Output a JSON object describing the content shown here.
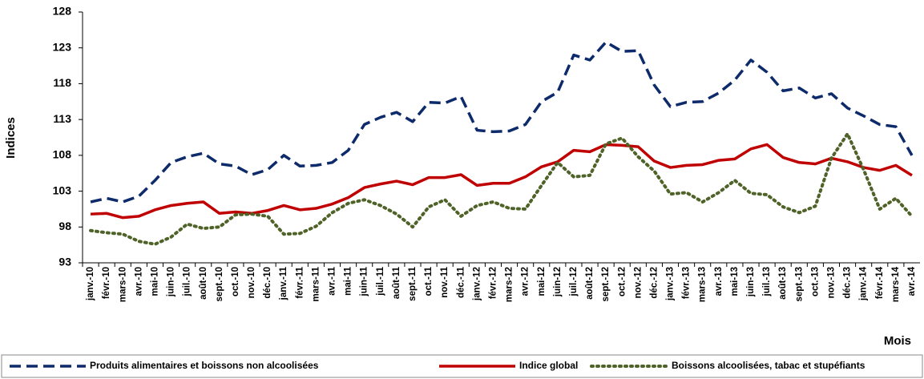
{
  "chart_data": {
    "type": "line",
    "x_label": "Mois",
    "y_label": "Indices",
    "categories": [
      "janv.-10",
      "févr.-10",
      "mars-10",
      "avr.-10",
      "mai-10",
      "juin-10",
      "juil.-10",
      "août-10",
      "sept.-10",
      "oct.-10",
      "nov.-10",
      "déc.-10",
      "janv.-11",
      "févr.-11",
      "mars-11",
      "avr.-11",
      "mai-11",
      "juin-11",
      "juil.-11",
      "août-11",
      "sept.-11",
      "oct.-11",
      "nov.-11",
      "déc.-11",
      "janv.-12",
      "févr.-12",
      "mars-12",
      "avr.-12",
      "mai-12",
      "juin-12",
      "juil.-12",
      "août-12",
      "sept.-12",
      "oct.-12",
      "nov.-12",
      "déc.-12",
      "janv.-13",
      "févr.-13",
      "mars-13",
      "avr.-13",
      "mai-13",
      "juin-13",
      "juil.-13",
      "août-13",
      "sept.-13",
      "oct.-13",
      "nov.-13",
      "déc.-13",
      "janv.-14",
      "févr.-14",
      "mars-14",
      "avr.-14"
    ],
    "series": [
      {
        "name": "Produits alimentaires et boissons non alcoolisées",
        "color": "#0d2a6b",
        "dash": "dashed",
        "values": [
          101.5,
          102,
          101.5,
          102.3,
          104.5,
          107,
          107.8,
          108.3,
          106.8,
          106.5,
          105.3,
          106,
          108,
          106.5,
          106.6,
          107,
          108.7,
          112.3,
          113.3,
          114,
          112.7,
          115.4,
          115.3,
          116.2,
          111.5,
          111.3,
          111.4,
          112.3,
          115.5,
          116.8,
          122,
          121.3,
          123.8,
          122.5,
          122.6,
          117.8,
          114.8,
          115.4,
          115.5,
          116.7,
          118.5,
          121.3,
          119.6,
          117,
          117.4,
          116,
          116.6,
          114.6,
          113.5,
          112.3,
          112,
          108
        ]
      },
      {
        "name": "Indice global",
        "color": "#c00000",
        "dash": "solid",
        "values": [
          99.8,
          99.9,
          99.3,
          99.5,
          100.4,
          101,
          101.3,
          101.5,
          99.9,
          100.1,
          99.9,
          100.3,
          101,
          100.4,
          100.6,
          101.2,
          102.1,
          103.5,
          104,
          104.4,
          103.9,
          104.9,
          104.9,
          105.3,
          103.8,
          104.1,
          104.1,
          105,
          106.4,
          107.1,
          108.7,
          108.5,
          109.5,
          109.4,
          109.2,
          107.2,
          106.3,
          106.6,
          106.7,
          107.3,
          107.5,
          108.9,
          109.5,
          107.7,
          107,
          106.8,
          107.6,
          107.1,
          106.3,
          105.9,
          106.6,
          105.2
        ]
      },
      {
        "name": "Boissons alcoolisées, tabac et stupéfiants",
        "color": "#4f6228",
        "dash": "dotted",
        "values": [
          97.5,
          97.2,
          97,
          96,
          95.6,
          96.6,
          98.4,
          97.8,
          98,
          99.7,
          99.8,
          99.5,
          97,
          97.1,
          98.1,
          100,
          101.3,
          101.8,
          101,
          99.8,
          98,
          100.8,
          101.8,
          99.5,
          101,
          101.5,
          100.6,
          100.5,
          103.8,
          107,
          105,
          105.2,
          109.6,
          110.4,
          107.8,
          105.8,
          102.6,
          102.8,
          101.5,
          102.8,
          104.5,
          102.7,
          102.5,
          100.8,
          100,
          100.9,
          107.6,
          111,
          106,
          100.5,
          102,
          99.5
        ]
      }
    ],
    "ylim": [
      93,
      128
    ],
    "yticks": [
      93,
      98,
      103,
      108,
      113,
      118,
      123,
      128
    ],
    "grid": false,
    "legend": "bottom"
  }
}
